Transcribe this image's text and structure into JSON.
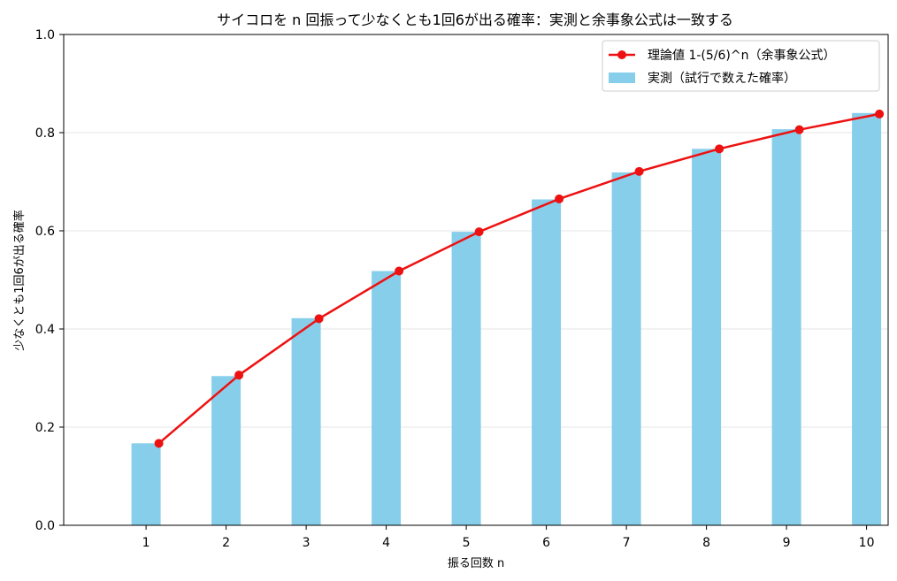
{
  "chart_data": {
    "type": "bar",
    "title": "サイコロを n 回振って少なくとも1回6が出る確率：実測と余事象公式は一致する",
    "xlabel": "振る回数 n",
    "ylabel": "少なくとも1回6が出る確率",
    "categories": [
      "1",
      "2",
      "3",
      "4",
      "5",
      "6",
      "7",
      "8",
      "9",
      "10"
    ],
    "ylim": [
      0,
      1.0
    ],
    "yticks": [
      "0.0",
      "0.2",
      "0.4",
      "0.6",
      "0.8",
      "1.0"
    ],
    "grid": "horizontal",
    "legend_position": "top-right",
    "series": [
      {
        "name": "実測（試行で数えた確率）",
        "kind": "bar",
        "color": "#87ceeb",
        "values": [
          0.167,
          0.304,
          0.422,
          0.518,
          0.598,
          0.664,
          0.719,
          0.767,
          0.807,
          0.84
        ]
      },
      {
        "name": "理論値 1-(5/6)^n（余事象公式）",
        "kind": "line",
        "color": "#ee1111",
        "values": [
          0.167,
          0.306,
          0.421,
          0.518,
          0.598,
          0.665,
          0.721,
          0.767,
          0.806,
          0.838
        ]
      }
    ]
  }
}
